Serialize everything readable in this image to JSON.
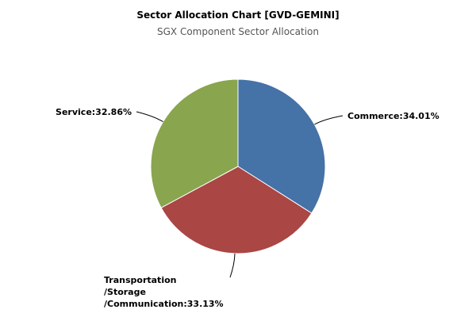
{
  "chart_data": {
    "type": "pie",
    "title": "Sector Allocation Chart [GVD-GEMINI]",
    "subtitle": "SGX Component Sector Allocation",
    "values": [
      34.01,
      33.13,
      32.86
    ],
    "value_labels": [
      [
        "Commerce:34.01%"
      ],
      [
        "Transportation",
        "/Storage",
        "/Communication:33.13%"
      ],
      [
        "Service:32.86%"
      ]
    ],
    "colors": [
      "#4572a7",
      "#aa4643",
      "#89a54e"
    ]
  }
}
